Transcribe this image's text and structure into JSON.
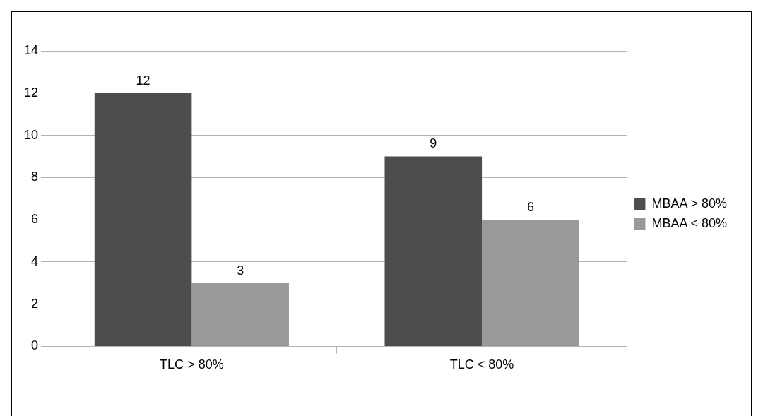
{
  "chart_data": {
    "type": "bar",
    "categories": [
      "TLC > 80%",
      "TLC < 80%"
    ],
    "series": [
      {
        "name": "MBAA > 80%",
        "color": "#4d4d4d",
        "values": [
          12,
          9
        ]
      },
      {
        "name": "MBAA < 80%",
        "color": "#999999",
        "values": [
          3,
          6
        ]
      }
    ],
    "ylim": [
      0,
      14
    ],
    "yticks": [
      0,
      2,
      4,
      6,
      8,
      10,
      12,
      14
    ],
    "grid": "y",
    "legend": "right",
    "data_labels": true
  }
}
